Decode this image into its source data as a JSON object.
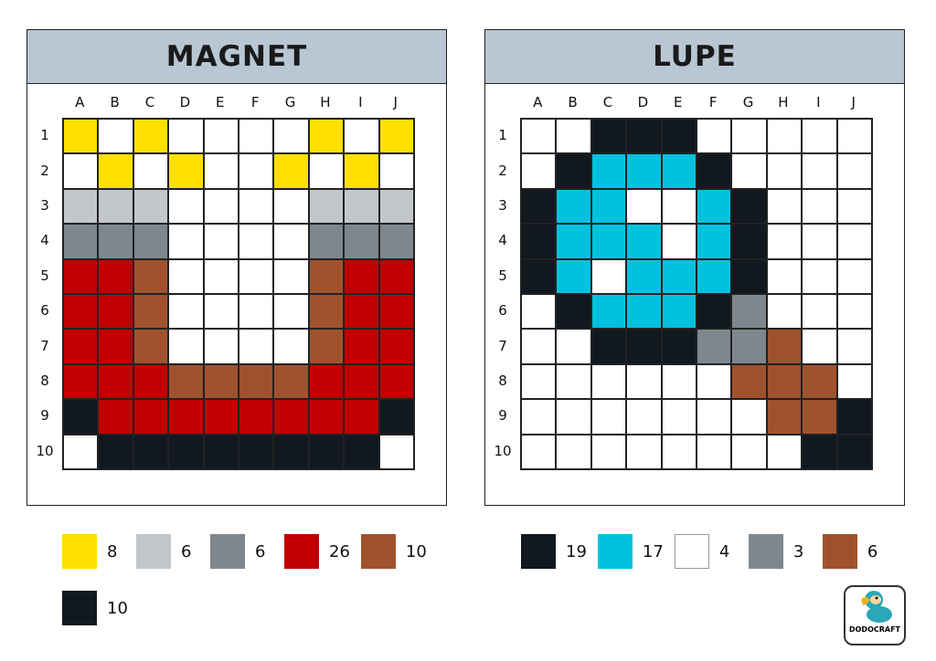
{
  "colors": {
    "Y": "#ffe000",
    "L": "#c3c7ca",
    "G": "#7e878e",
    "R": "#c00000",
    "B": "#a0522d",
    "K": "#111820",
    "C": "#00c2df",
    "W": "#ffffff"
  },
  "columns": [
    "A",
    "B",
    "C",
    "D",
    "E",
    "F",
    "G",
    "H",
    "I",
    "J"
  ],
  "rows": [
    "1",
    "2",
    "3",
    "4",
    "5",
    "6",
    "7",
    "8",
    "9",
    "10"
  ],
  "puzzles": [
    {
      "title": "MAGNET",
      "grid": [
        "YWYWWWWYWY",
        "WYWYWWYWYW",
        "LLLWWWWLLL",
        "GGGWWWWGGG",
        "RRBWWWWBRR",
        "RRBWWWWBRR",
        "RRBWWWWBRR",
        "RRRBBBBRRR",
        "KRRRRRRRRK",
        "WKKKKKKKKW"
      ],
      "legend": [
        {
          "color": "Y",
          "count": "8"
        },
        {
          "color": "L",
          "count": "6"
        },
        {
          "color": "G",
          "count": "6"
        },
        {
          "color": "R",
          "count": "26"
        },
        {
          "color": "B",
          "count": "10"
        },
        {
          "color": "K",
          "count": "10"
        }
      ]
    },
    {
      "title": "LUPE",
      "grid": [
        "WWKKKWWWWW",
        "WKCCCKWWWW",
        "KCCWWCKWWW",
        "KCCCWCKWWW",
        "KCWCCCKWWW",
        "WKCCCKGWWW",
        "WWKKKGGBWW",
        "WWWWWWBBBW",
        "WWWWWWWBBK",
        "WWWWWWWWKK"
      ],
      "legend": [
        {
          "color": "K",
          "count": "19"
        },
        {
          "color": "C",
          "count": "17"
        },
        {
          "color": "W",
          "count": "4"
        },
        {
          "color": "G",
          "count": "3"
        },
        {
          "color": "B",
          "count": "6"
        }
      ]
    }
  ],
  "logo": {
    "text": "DODOCRAFT"
  }
}
